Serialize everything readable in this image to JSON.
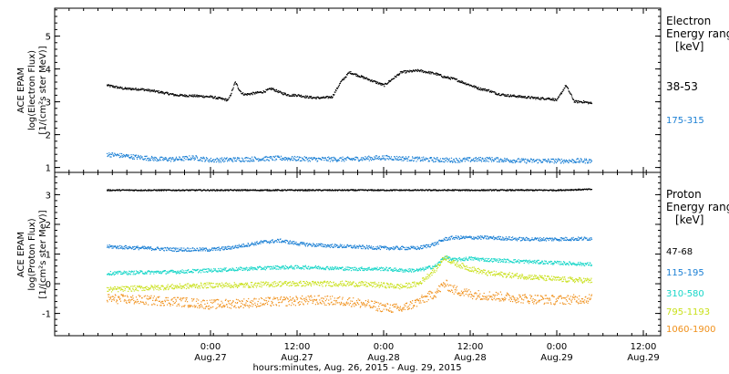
{
  "chart_data": [
    {
      "type": "scatter",
      "panel": "electron",
      "ylabel_lines": [
        "ACE EPAM",
        "log(Electron Flux)",
        "[1/(cm²s ster MeV)]"
      ],
      "ylim": [
        0.85,
        5.85
      ],
      "yticks": [
        1,
        2,
        3,
        4,
        5
      ],
      "legend_title": [
        "Electron",
        "Energy ranges",
        "[keV]"
      ],
      "series": [
        {
          "name": "38-53",
          "color": "#000000",
          "x": [
            -0.6,
            -0.5,
            -0.4,
            -0.3,
            -0.2,
            -0.1,
            0.0,
            0.05,
            0.1,
            0.12,
            0.14,
            0.16,
            0.18,
            0.2,
            0.3,
            0.35,
            0.4,
            0.45,
            0.5,
            0.55,
            0.6,
            0.65,
            0.7,
            0.75,
            0.8,
            0.9,
            0.95,
            1.0,
            1.05,
            1.1,
            1.2,
            1.3,
            1.35,
            1.4,
            1.45,
            1.5,
            1.55,
            1.6,
            1.65,
            1.7,
            1.8,
            1.9,
            1.95,
            2.0,
            2.05,
            2.1,
            2.15,
            2.2
          ],
          "y": [
            3.5,
            3.4,
            3.38,
            3.3,
            3.2,
            3.18,
            3.15,
            3.1,
            3.05,
            3.3,
            3.6,
            3.4,
            3.25,
            3.22,
            3.3,
            3.4,
            3.28,
            3.2,
            3.2,
            3.15,
            3.12,
            3.12,
            3.15,
            3.6,
            3.9,
            3.7,
            3.6,
            3.5,
            3.7,
            3.9,
            3.95,
            3.85,
            3.75,
            3.7,
            3.6,
            3.5,
            3.4,
            3.35,
            3.25,
            3.2,
            3.15,
            3.1,
            3.1,
            3.05,
            3.5,
            3.0,
            3.0,
            2.95
          ]
        },
        {
          "name": "175-315",
          "color": "#1a7fd4",
          "x": [
            -0.6,
            -0.5,
            -0.4,
            -0.3,
            -0.2,
            -0.1,
            0.0,
            0.2,
            0.4,
            0.6,
            0.8,
            1.0,
            1.2,
            1.4,
            1.6,
            1.8,
            2.0,
            2.2
          ],
          "y": [
            1.4,
            1.35,
            1.3,
            1.25,
            1.25,
            1.3,
            1.22,
            1.25,
            1.28,
            1.25,
            1.25,
            1.3,
            1.25,
            1.22,
            1.25,
            1.2,
            1.2,
            1.2
          ]
        }
      ]
    },
    {
      "type": "scatter",
      "panel": "proton",
      "ylabel_lines": [
        "ACE EPAM",
        "log(Proton Flux)",
        "[1/(cm²s ster MeV)]"
      ],
      "ylim": [
        -1.75,
        3.75
      ],
      "yticks": [
        -1,
        0,
        1,
        2,
        3
      ],
      "legend_title": [
        "Proton",
        "Energy ranges",
        "[keV]"
      ],
      "series": [
        {
          "name": "47-68",
          "color": "#000000",
          "x": [
            -0.6,
            -0.4,
            -0.2,
            0.0,
            0.2,
            0.4,
            0.6,
            0.8,
            1.0,
            1.2,
            1.4,
            1.6,
            1.8,
            2.0,
            2.2
          ],
          "y": [
            3.15,
            3.15,
            3.15,
            3.15,
            3.15,
            3.15,
            3.15,
            3.15,
            3.15,
            3.15,
            3.15,
            3.15,
            3.15,
            3.15,
            3.18
          ]
        },
        {
          "name": "115-195",
          "color": "#1a7fd4",
          "x": [
            -0.6,
            -0.4,
            -0.2,
            0.0,
            0.1,
            0.2,
            0.3,
            0.4,
            0.5,
            0.6,
            0.8,
            1.0,
            1.2,
            1.3,
            1.35,
            1.4,
            1.6,
            1.8,
            2.0,
            2.2
          ],
          "y": [
            1.25,
            1.2,
            1.15,
            1.15,
            1.2,
            1.3,
            1.4,
            1.45,
            1.35,
            1.3,
            1.25,
            1.2,
            1.2,
            1.35,
            1.5,
            1.55,
            1.55,
            1.5,
            1.5,
            1.52
          ]
        },
        {
          "name": "310-580",
          "color": "#17d6c8",
          "x": [
            -0.6,
            -0.4,
            -0.2,
            0.0,
            0.2,
            0.4,
            0.6,
            0.8,
            1.0,
            1.1,
            1.2,
            1.3,
            1.35,
            1.4,
            1.5,
            1.6,
            1.8,
            2.0,
            2.2
          ],
          "y": [
            0.35,
            0.38,
            0.4,
            0.45,
            0.5,
            0.55,
            0.55,
            0.5,
            0.5,
            0.45,
            0.45,
            0.6,
            0.9,
            0.8,
            0.85,
            0.8,
            0.75,
            0.7,
            0.65
          ]
        },
        {
          "name": "795-1193",
          "color": "#c9e01a",
          "x": [
            -0.6,
            -0.4,
            -0.2,
            0.0,
            0.2,
            0.4,
            0.6,
            0.8,
            1.0,
            1.1,
            1.2,
            1.3,
            1.35,
            1.4,
            1.5,
            1.6,
            1.8,
            2.0,
            2.2
          ],
          "y": [
            -0.2,
            -0.15,
            -0.1,
            -0.05,
            -0.05,
            0.0,
            0.0,
            0.0,
            -0.05,
            -0.1,
            0.0,
            0.5,
            0.9,
            0.7,
            0.5,
            0.35,
            0.25,
            0.15,
            0.1
          ]
        },
        {
          "name": "1060-1900",
          "color": "#f0901a",
          "x": [
            -0.6,
            -0.4,
            -0.2,
            0.0,
            0.2,
            0.4,
            0.6,
            0.8,
            1.0,
            1.1,
            1.2,
            1.3,
            1.35,
            1.4,
            1.5,
            1.6,
            1.8,
            2.0,
            2.2
          ],
          "y": [
            -0.5,
            -0.55,
            -0.6,
            -0.7,
            -0.65,
            -0.6,
            -0.55,
            -0.6,
            -0.8,
            -0.85,
            -0.6,
            -0.3,
            0.0,
            -0.2,
            -0.35,
            -0.4,
            -0.5,
            -0.55,
            -0.5
          ]
        }
      ]
    }
  ],
  "x_axis": {
    "range": [
      -0.9,
      2.6
    ],
    "ticks": [
      {
        "x": 0.0,
        "time": "0:00",
        "date": "Aug.27"
      },
      {
        "x": 0.5,
        "time": "12:00",
        "date": "Aug.27"
      },
      {
        "x": 1.0,
        "time": "0:00",
        "date": "Aug.28"
      },
      {
        "x": 1.5,
        "time": "12:00",
        "date": "Aug.28"
      },
      {
        "x": 2.0,
        "time": "0:00",
        "date": "Aug.29"
      },
      {
        "x": 2.5,
        "time": "12:00",
        "date": "Aug.29"
      }
    ],
    "title": "hours:minutes, Aug. 26, 2015 - Aug. 29, 2015"
  },
  "labels": {
    "electron_title_1": "Electron",
    "electron_title_2": "Energy ranges",
    "electron_title_3": "[keV]",
    "electron_e1": "38-53",
    "electron_e2": "175-315",
    "proton_title_1": "Proton",
    "proton_title_2": "Energy ranges",
    "proton_title_3": "[keV]",
    "proton_p1": "47-68",
    "proton_p2": "115-195",
    "proton_p3": "310-580",
    "proton_p4": "795-1193",
    "proton_p5": "1060-1900",
    "ytitle_top_1": "ACE EPAM",
    "ytitle_top_2": "log(Electron Flux)",
    "ytitle_top_3": "[1/(cm²s ster MeV)]",
    "ytitle_bot_1": "ACE EPAM",
    "ytitle_bot_2": "log(Proton Flux)",
    "ytitle_bot_3": "[1/(cm²s ster MeV)]",
    "xtitle": "hours:minutes, Aug. 26, 2015 - Aug. 29, 2015"
  },
  "colors": {
    "electron_38_53": "#000000",
    "electron_175_315": "#1a7fd4",
    "proton_47_68": "#000000",
    "proton_115_195": "#1a7fd4",
    "proton_310_580": "#17d6c8",
    "proton_795_1193": "#c9e01a",
    "proton_1060_1900": "#f0901a"
  }
}
